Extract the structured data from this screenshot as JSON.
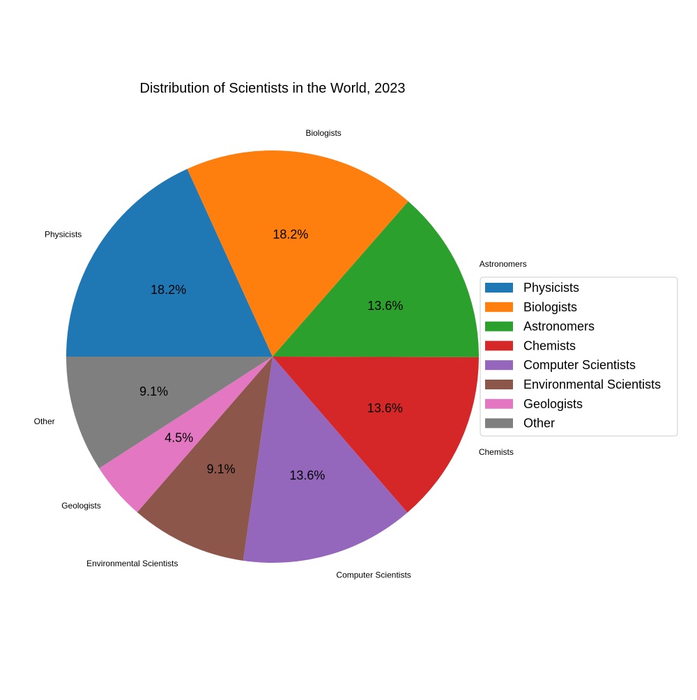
{
  "chart_data": {
    "type": "pie",
    "title": "Distribution of Scientists in the World, 2023",
    "categories": [
      "Physicists",
      "Biologists",
      "Astronomers",
      "Chemists",
      "Computer Scientists",
      "Environmental Scientists",
      "Geologists",
      "Other"
    ],
    "values": [
      18.2,
      18.2,
      13.6,
      13.6,
      13.6,
      9.1,
      4.5,
      9.1
    ],
    "pct_labels": [
      "18.2%",
      "18.2%",
      "13.6%",
      "13.6%",
      "13.6%",
      "9.1%",
      "4.5%",
      "9.1%"
    ],
    "colors": [
      "#1f77b4",
      "#ff7f0e",
      "#2ca02c",
      "#d62728",
      "#9467bd",
      "#8c564b",
      "#e377c2",
      "#7f7f7f"
    ],
    "start_angle_deg": 180,
    "direction": "clockwise",
    "legend": {
      "placement": "right",
      "entries": [
        "Physicists",
        "Biologists",
        "Astronomers",
        "Chemists",
        "Computer Scientists",
        "Environmental Scientists",
        "Geologists",
        "Other"
      ]
    }
  }
}
